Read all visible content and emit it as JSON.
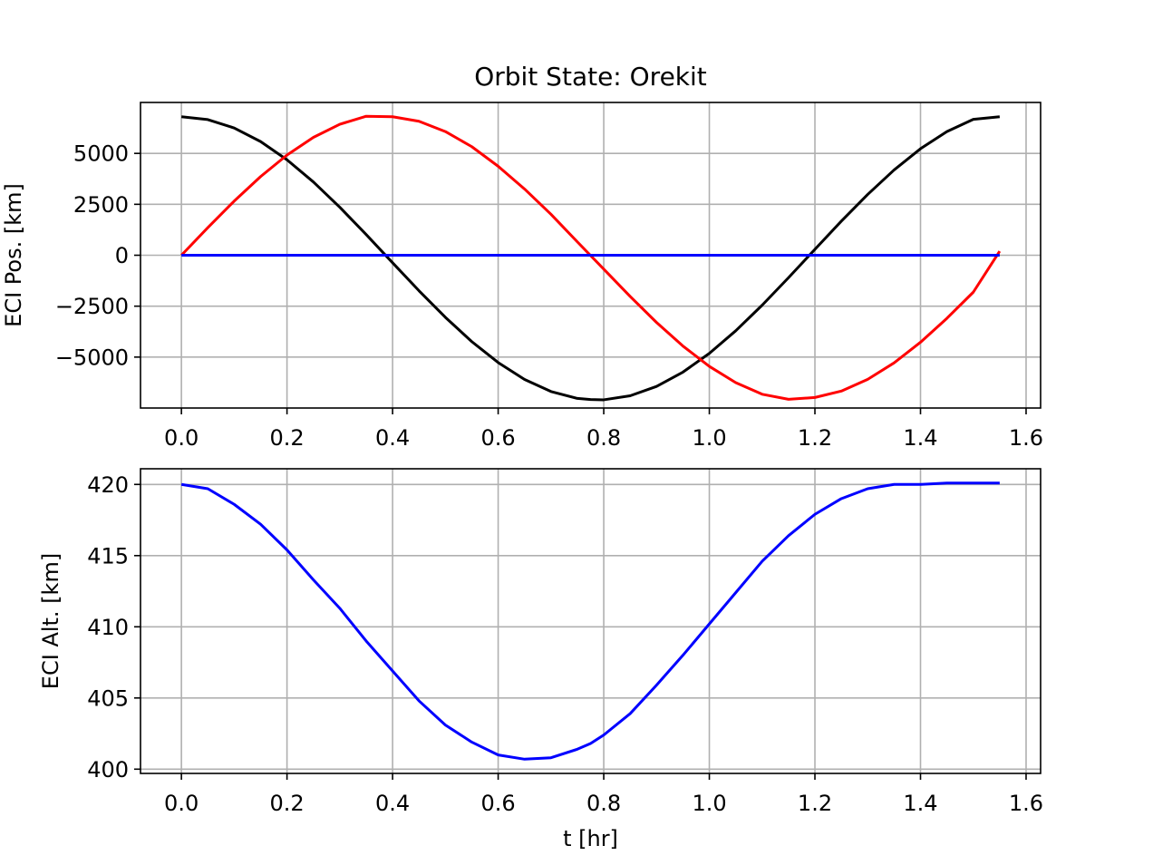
{
  "chart_data": [
    {
      "type": "line",
      "title": "Orbit State: Orekit",
      "xlabel": "",
      "ylabel": "ECI Pos. [km]",
      "xlim": [
        -0.0775,
        1.6275
      ],
      "ylim": [
        -7500,
        7500
      ],
      "xticks": [
        0.0,
        0.2,
        0.4,
        0.6,
        0.8,
        1.0,
        1.2,
        1.4,
        1.6
      ],
      "xtick_labels": [
        "0.0",
        "0.2",
        "0.4",
        "0.6",
        "0.8",
        "1.0",
        "1.2",
        "1.4",
        "1.6"
      ],
      "yticks": [
        -5000,
        -2500,
        0,
        2500,
        5000
      ],
      "ytick_labels": [
        "−5000",
        "−2500",
        "0",
        "2500",
        "5000"
      ],
      "grid": true,
      "legend": "none",
      "colors": [
        "#000000",
        "#ff0000",
        "#0000ff"
      ],
      "series": [
        {
          "color": "#000000",
          "x": [
            0.0,
            0.05,
            0.1,
            0.15,
            0.2,
            0.25,
            0.3,
            0.35,
            0.4,
            0.45,
            0.5,
            0.55,
            0.6,
            0.65,
            0.7,
            0.75,
            0.775,
            0.8,
            0.85,
            0.9,
            0.95,
            1.0,
            1.05,
            1.1,
            1.15,
            1.2,
            1.25,
            1.3,
            1.35,
            1.4,
            1.45,
            1.5,
            1.55
          ],
          "y": [
            6798,
            6659,
            6247,
            5581,
            4685,
            3596,
            2356,
            1017,
            -370,
            -1742,
            -3048,
            -4239,
            -5268,
            -6096,
            -6690,
            -7028,
            -7085,
            -7097,
            -6898,
            -6441,
            -5738,
            -4817,
            -3708,
            -2454,
            -1102,
            290,
            1672,
            2985,
            4186,
            5229,
            6068,
            6672,
            6798
          ]
        },
        {
          "color": "#ff0000",
          "x": [
            0.0,
            0.05,
            0.1,
            0.15,
            0.2,
            0.25,
            0.3,
            0.35,
            0.4,
            0.45,
            0.5,
            0.55,
            0.6,
            0.65,
            0.7,
            0.75,
            0.8,
            0.85,
            0.9,
            0.95,
            1.0,
            1.05,
            1.1,
            1.15,
            1.2,
            1.25,
            1.3,
            1.35,
            1.4,
            1.45,
            1.5,
            1.55
          ],
          "y": [
            0,
            1355,
            2659,
            3862,
            4918,
            5786,
            6430,
            6823,
            6799,
            6578,
            6071,
            5330,
            4367,
            3251,
            2010,
            657,
            -680,
            -2024,
            -3299,
            -4457,
            -5455,
            -6254,
            -6824,
            -7072,
            -6983,
            -6669,
            -6093,
            -5283,
            -4271,
            -3098,
            -1814,
            200
          ]
        },
        {
          "color": "#0000ff",
          "x": [
            0.0,
            1.55
          ],
          "y": [
            0,
            0
          ]
        }
      ]
    },
    {
      "type": "line",
      "title": "",
      "xlabel": "t [hr]",
      "ylabel": "ECI Alt. [km]",
      "xlim": [
        -0.0775,
        1.6275
      ],
      "ylim": [
        399.7,
        421.1
      ],
      "xticks": [
        0.0,
        0.2,
        0.4,
        0.6,
        0.8,
        1.0,
        1.2,
        1.4,
        1.6
      ],
      "xtick_labels": [
        "0.0",
        "0.2",
        "0.4",
        "0.6",
        "0.8",
        "1.0",
        "1.2",
        "1.4",
        "1.6"
      ],
      "yticks": [
        400,
        405,
        410,
        415,
        420
      ],
      "ytick_labels": [
        "400",
        "405",
        "410",
        "415",
        "420"
      ],
      "grid": true,
      "legend": "none",
      "colors": [
        "#0000ff"
      ],
      "series": [
        {
          "color": "#0000ff",
          "x": [
            0.0,
            0.05,
            0.1,
            0.15,
            0.2,
            0.25,
            0.3,
            0.35,
            0.4,
            0.45,
            0.5,
            0.55,
            0.6,
            0.65,
            0.7,
            0.75,
            0.775,
            0.8,
            0.85,
            0.9,
            0.95,
            1.0,
            1.05,
            1.1,
            1.15,
            1.2,
            1.25,
            1.3,
            1.35,
            1.4,
            1.45,
            1.5,
            1.55
          ],
          "y": [
            420.0,
            419.7,
            418.6,
            417.2,
            415.4,
            413.3,
            411.3,
            409.0,
            406.9,
            404.8,
            403.1,
            401.9,
            401.0,
            400.7,
            400.8,
            401.4,
            401.8,
            402.4,
            403.9,
            405.9,
            408.0,
            410.2,
            412.4,
            414.6,
            416.4,
            417.9,
            419.0,
            419.7,
            420.0,
            420.0,
            420.1,
            420.1,
            420.1
          ]
        }
      ]
    }
  ]
}
